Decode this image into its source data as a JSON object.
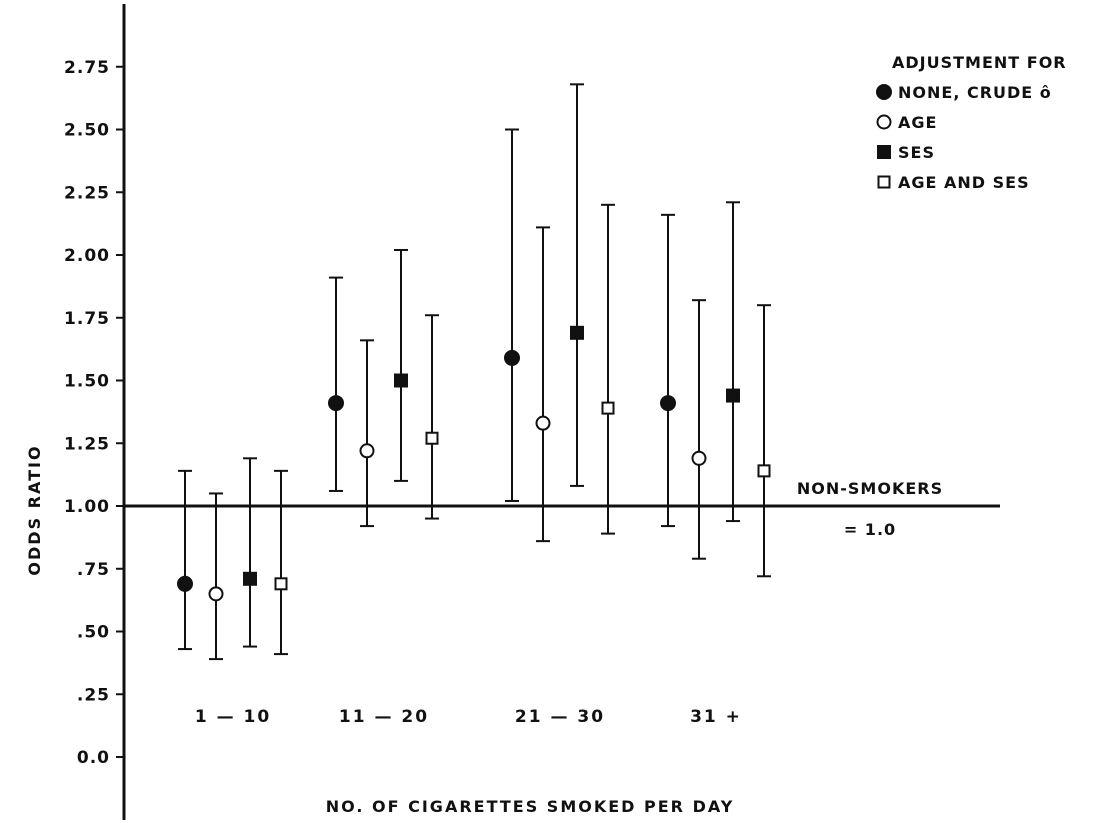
{
  "chart_data": {
    "type": "scatter",
    "xlabel": "NO. OF CIGARETTES SMOKED PER DAY",
    "ylabel": "ODDS RATIO",
    "categories": [
      "1 — 10",
      "11 — 20",
      "21 — 30",
      "31 +"
    ],
    "ylim": [
      -0.3,
      3.0
    ],
    "yticks": [
      {
        "value": 0.0,
        "label": "0.0"
      },
      {
        "value": 0.25,
        "label": ".25"
      },
      {
        "value": 0.5,
        "label": ".50"
      },
      {
        "value": 0.75,
        "label": ".75"
      },
      {
        "value": 1.0,
        "label": "1.00"
      },
      {
        "value": 1.25,
        "label": "1.25"
      },
      {
        "value": 1.5,
        "label": "1.50"
      },
      {
        "value": 1.75,
        "label": "1.75"
      },
      {
        "value": 2.0,
        "label": "2.00"
      },
      {
        "value": 2.25,
        "label": "2.25"
      },
      {
        "value": 2.5,
        "label": "2.50"
      },
      {
        "value": 2.75,
        "label": "2.75"
      }
    ],
    "grid": false,
    "legend": {
      "title": "ADJUSTMENT FOR",
      "placement": "top-right"
    },
    "reference_line": {
      "value": 1.0,
      "label_line1": "NON-SMOKERS",
      "label_line2": "= 1.0"
    },
    "series": [
      {
        "name": "NONE, CRUDE ô",
        "marker": "filled-circle",
        "values": [
          0.69,
          1.41,
          1.59,
          1.41
        ],
        "lower": [
          0.43,
          1.06,
          1.02,
          0.92
        ],
        "upper": [
          1.14,
          1.91,
          2.5,
          2.16
        ]
      },
      {
        "name": "AGE",
        "marker": "open-circle",
        "values": [
          0.65,
          1.22,
          1.33,
          1.19
        ],
        "lower": [
          0.39,
          0.92,
          0.86,
          0.79
        ],
        "upper": [
          1.05,
          1.66,
          2.11,
          1.82
        ]
      },
      {
        "name": "SES",
        "marker": "filled-square",
        "values": [
          0.71,
          1.5,
          1.69,
          1.44
        ],
        "lower": [
          0.44,
          1.1,
          1.08,
          0.94
        ],
        "upper": [
          1.19,
          2.02,
          2.68,
          2.21
        ]
      },
      {
        "name": "AGE AND SES",
        "marker": "open-square",
        "values": [
          0.69,
          1.27,
          1.39,
          1.14
        ],
        "lower": [
          0.41,
          0.95,
          0.89,
          0.72
        ],
        "upper": [
          1.14,
          1.76,
          2.2,
          1.8
        ]
      }
    ]
  }
}
